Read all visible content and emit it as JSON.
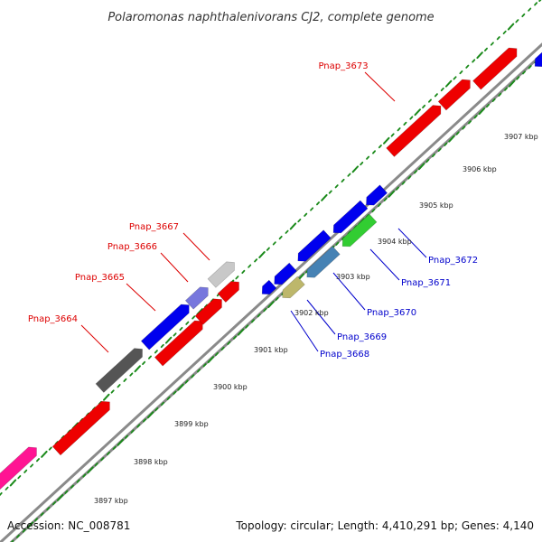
{
  "title": "Polaromonas naphthalenivorans CJ2, complete genome",
  "footer": {
    "accession": "Accession: NC_008781",
    "stats": "Topology: circular; Length: 4,410,291 bp; Genes: 4,140"
  },
  "colors": {
    "backbone": "#8a8a8a",
    "tick": "#1a8a1a",
    "forward_label": "#dd0000",
    "reverse_label": "#0000cc"
  },
  "scale_labels": [
    "3897 kbp",
    "3898 kbp",
    "3899 kbp",
    "3900 kbp",
    "3901 kbp",
    "3902 kbp",
    "3903 kbp",
    "3904 kbp",
    "3905 kbp",
    "3906 kbp",
    "3907 kbp"
  ],
  "forward_genes": [
    {
      "color": "#ff1493"
    },
    {
      "color": "#ee0000"
    },
    {
      "color": "#555555"
    },
    {
      "color": "#0000ee"
    },
    {
      "color": "#7777dd"
    },
    {
      "color": "#c8c8c8"
    },
    {
      "color": "#ee0000"
    },
    {
      "color": "#ee0000"
    },
    {
      "color": "#ee0000"
    },
    {
      "color": "#ee0000"
    },
    {
      "color": "#ee0000"
    },
    {
      "color": "#ee0000"
    }
  ],
  "reverse_genes": [
    {
      "color": "#0000ee"
    },
    {
      "color": "#0000ee"
    },
    {
      "color": "#bdb76b"
    },
    {
      "color": "#4682b4"
    },
    {
      "color": "#0000ee"
    },
    {
      "color": "#32cd32"
    },
    {
      "color": "#0000ee"
    },
    {
      "color": "#0000ee"
    }
  ],
  "gene_labels": [
    {
      "text": "Pnap_3673",
      "strand": "forward"
    },
    {
      "text": "Pnap_3667",
      "strand": "forward"
    },
    {
      "text": "Pnap_3666",
      "strand": "forward"
    },
    {
      "text": "Pnap_3665",
      "strand": "forward"
    },
    {
      "text": "Pnap_3664",
      "strand": "forward"
    },
    {
      "text": "Pnap_3672",
      "strand": "reverse"
    },
    {
      "text": "Pnap_3671",
      "strand": "reverse"
    },
    {
      "text": "Pnap_3670",
      "strand": "reverse"
    },
    {
      "text": "Pnap_3669",
      "strand": "reverse"
    },
    {
      "text": "Pnap_3668",
      "strand": "reverse"
    }
  ]
}
